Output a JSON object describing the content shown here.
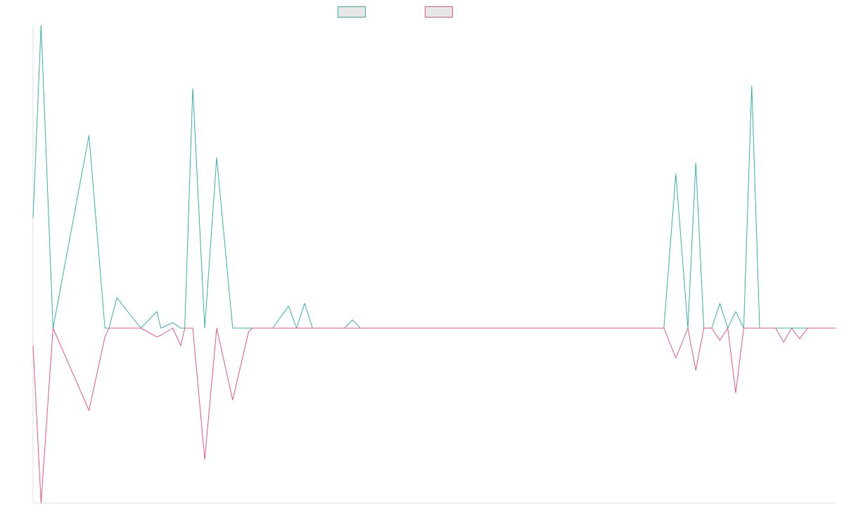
{
  "chart_data": {
    "type": "line",
    "title": "",
    "xlabel": "",
    "ylabel": "",
    "grid": false,
    "legend": "top-center",
    "ylim": [
      -1,
      1.1
    ],
    "x": [
      0,
      2,
      5,
      14,
      18,
      19,
      21,
      27,
      31,
      32,
      35,
      37,
      38,
      40,
      43,
      46,
      50,
      54,
      55,
      58,
      60,
      64,
      66,
      68,
      70,
      72,
      74,
      76,
      78,
      80,
      82,
      84,
      86,
      88,
      90,
      92,
      95,
      98,
      102,
      104,
      106,
      108,
      110,
      112,
      115,
      118,
      121,
      124,
      127,
      130,
      132,
      134,
      136,
      138,
      140,
      142,
      144,
      146,
      149,
      152,
      155,
      158,
      161,
      164,
      166,
      168,
      170,
      172,
      174,
      176,
      178,
      180,
      182,
      184,
      186,
      188,
      190,
      192,
      194,
      196,
      198,
      200,
      201
    ],
    "series": [
      {
        "name": "",
        "color": "#36b5b0",
        "values": [
          0.4,
          1.1,
          0,
          0.7,
          0,
          0,
          0.11,
          0,
          0.06,
          0,
          0.02,
          0,
          0,
          0.87,
          0,
          0.62,
          0,
          0,
          0,
          0,
          0,
          0.08,
          0,
          0.09,
          0,
          0,
          0,
          0,
          0,
          0.03,
          0,
          0,
          0,
          0,
          0,
          0,
          0,
          0,
          0,
          0,
          0,
          0,
          0,
          0,
          0,
          0,
          0,
          0,
          0,
          0,
          0,
          0,
          0,
          0,
          0,
          0,
          0,
          0,
          0,
          0,
          0,
          0,
          0.56,
          0,
          0.6,
          0,
          0,
          0.09,
          0,
          0.06,
          0,
          0.88,
          0,
          0,
          0,
          0,
          0,
          0,
          0,
          0,
          0,
          0,
          0
        ]
      },
      {
        "name": "",
        "color": "#f0568a",
        "values": [
          -0.1,
          -1.0,
          0,
          -0.47,
          -0.05,
          0,
          0,
          0,
          -0.05,
          -0.04,
          0,
          -0.1,
          0,
          0,
          -0.75,
          0,
          -0.41,
          -0.02,
          0,
          0,
          0,
          0,
          0,
          0,
          0,
          0,
          0,
          0,
          0,
          0,
          0,
          0,
          0,
          0,
          0,
          0,
          0,
          0,
          0,
          0,
          0,
          0,
          0,
          0,
          0,
          0,
          0,
          0,
          0,
          0,
          0,
          0,
          0,
          0,
          0,
          0,
          0,
          0,
          0,
          0,
          0,
          0,
          -0.17,
          0,
          -0.24,
          0,
          0,
          -0.07,
          0,
          -0.37,
          0,
          0,
          0,
          0,
          0,
          -0.08,
          0,
          -0.06,
          0,
          0,
          0,
          0,
          0
        ]
      }
    ]
  }
}
